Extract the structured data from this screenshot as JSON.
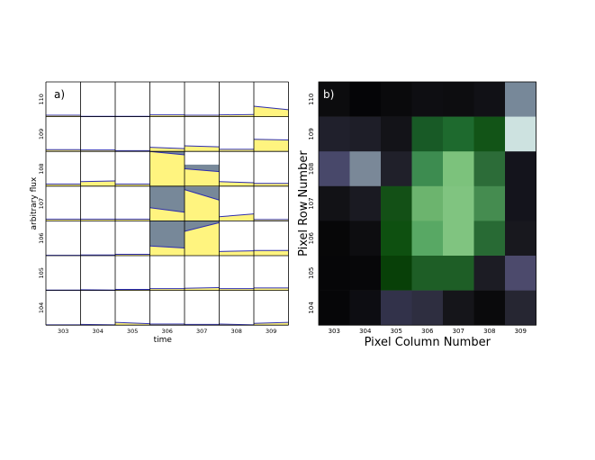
{
  "chart_data": [
    {
      "type": "pixel_lightcurve_grid",
      "panel_label": "a)",
      "xlabel": "time",
      "ylabel": "arbitrary flux",
      "columns": [
        "303",
        "304",
        "305",
        "306",
        "307",
        "308",
        "309"
      ],
      "rows": [
        "110",
        "109",
        "108",
        "107",
        "106",
        "105",
        "104"
      ],
      "cells": [
        [
          {
            "s": 0.04,
            "e": 0.04
          },
          {
            "s": 0.01,
            "e": 0.01
          },
          {
            "s": 0.01,
            "e": 0.01
          },
          {
            "s": 0.05,
            "e": 0.05
          },
          {
            "s": 0.04,
            "e": 0.04
          },
          {
            "s": 0.05,
            "e": 0.06
          },
          {
            "s": 0.3,
            "e": 0.2
          }
        ],
        [
          {
            "s": 0.05,
            "e": 0.05
          },
          {
            "s": 0.04,
            "e": 0.04
          },
          {
            "s": 0.02,
            "e": 0.02
          },
          {
            "s": 0.12,
            "e": 0.08
          },
          {
            "s": 0.16,
            "e": 0.13
          },
          {
            "s": 0.06,
            "e": 0.06
          },
          {
            "s": 0.35,
            "e": 0.33
          }
        ],
        [
          {
            "s": 0.06,
            "e": 0.06
          },
          {
            "s": 0.13,
            "e": 0.15
          },
          {
            "s": 0.06,
            "e": 0.06
          },
          {
            "s": 1.0,
            "e": 0.9,
            "t": 1.0
          },
          {
            "s": 0.5,
            "e": 0.42,
            "t": 0.62
          },
          {
            "s": 0.13,
            "e": 0.1
          },
          {
            "s": 0.08,
            "e": 0.08
          }
        ],
        [
          {
            "s": 0.05,
            "e": 0.05
          },
          {
            "s": 0.05,
            "e": 0.05
          },
          {
            "s": 0.05,
            "e": 0.05
          },
          {
            "s": 0.38,
            "e": 0.25,
            "t": 1.0
          },
          {
            "s": 0.9,
            "e": 0.6,
            "t": 0.98
          },
          {
            "s": 0.12,
            "e": 0.2
          },
          {
            "s": 0.04,
            "e": 0.04
          }
        ],
        [
          {
            "s": 0.01,
            "e": 0.01
          },
          {
            "s": 0.02,
            "e": 0.02
          },
          {
            "s": 0.04,
            "e": 0.04
          },
          {
            "s": 0.28,
            "e": 0.22,
            "t": 1.0
          },
          {
            "s": 0.7,
            "e": 0.95,
            "t": 1.0
          },
          {
            "s": 0.12,
            "e": 0.14
          },
          {
            "s": 0.15,
            "e": 0.15
          }
        ],
        [
          {
            "s": 0.01,
            "e": 0.01
          },
          {
            "s": 0.02,
            "e": 0.01
          },
          {
            "s": 0.03,
            "e": 0.03
          },
          {
            "s": 0.05,
            "e": 0.05
          },
          {
            "s": 0.06,
            "e": 0.08
          },
          {
            "s": 0.05,
            "e": 0.05
          },
          {
            "s": 0.07,
            "e": 0.07
          }
        ],
        [
          {
            "s": 0.01,
            "e": 0.01
          },
          {
            "s": 0.02,
            "e": 0.01
          },
          {
            "s": 0.08,
            "e": 0.04
          },
          {
            "s": 0.03,
            "e": 0.03
          },
          {
            "s": 0.02,
            "e": 0.02
          },
          {
            "s": 0.03,
            "e": 0.01
          },
          {
            "s": 0.05,
            "e": 0.08
          }
        ]
      ],
      "colors": {
        "flux_fill": "#fff47f",
        "flux_line": "#2d2db0",
        "saturated": "#778899",
        "frame": "#000000"
      }
    },
    {
      "type": "heatmap",
      "panel_label": "b)",
      "xlabel": "Pixel Column Number",
      "ylabel": "Pixel Row Number",
      "columns": [
        "303",
        "304",
        "305",
        "306",
        "307",
        "308",
        "309"
      ],
      "rows": [
        "110",
        "109",
        "108",
        "107",
        "106",
        "105",
        "104"
      ],
      "colors": [
        [
          "#0c0c0e",
          "#050507",
          "#0a0a0c",
          "#0e0e12",
          "#0d0d10",
          "#111116",
          "#778899"
        ],
        [
          "#20202c",
          "#1e1e28",
          "#131318",
          "#185a26",
          "#1e6a2e",
          "#125417",
          "#cde2e0"
        ],
        [
          "#48486a",
          "#7a8898",
          "#20202a",
          "#3d8c50",
          "#7cc27c",
          "#2c6c38",
          "#14141c"
        ],
        [
          "#121216",
          "#1a1a22",
          "#135016",
          "#6cb46e",
          "#80c480",
          "#458c50",
          "#14141c"
        ],
        [
          "#070708",
          "#0d0d10",
          "#0e5010",
          "#58a864",
          "#80c480",
          "#286a34",
          "#18181e"
        ],
        [
          "#060608",
          "#070709",
          "#084008",
          "#1e5e26",
          "#1e5e26",
          "#1c1c24",
          "#4c4a6c"
        ],
        [
          "#060608",
          "#0d0d12",
          "#32324a",
          "#2e2e40",
          "#15151a",
          "#0a0a0c",
          "#262632"
        ]
      ]
    }
  ]
}
